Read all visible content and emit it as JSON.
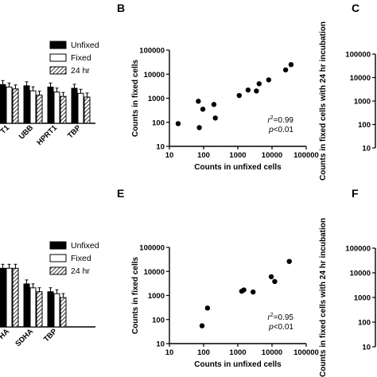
{
  "chart_data": [
    {
      "panel": "",
      "type": "bar",
      "categories": [
        "T1",
        "UBB",
        "HPRT1",
        "TBP"
      ],
      "series": [
        {
          "name": "Unfixed",
          "values": [
            62,
            60,
            58,
            56
          ]
        },
        {
          "name": "Fixed",
          "values": [
            58,
            52,
            50,
            48
          ]
        },
        {
          "name": "24 hr",
          "values": [
            55,
            45,
            43,
            42
          ]
        }
      ],
      "legend": "top-right",
      "colors": [
        "#000000",
        "#ffffff",
        "#ffffff"
      ]
    },
    {
      "panel": "B",
      "type": "scatter",
      "xlabel": "Counts in unfixed cells",
      "ylabel": "Counts in fixed cells",
      "xscale": "log",
      "yscale": "log",
      "xlim": [
        10,
        100000
      ],
      "ylim": [
        10,
        100000
      ],
      "xticks": [
        "10",
        "100",
        "1000",
        "10000",
        "100000"
      ],
      "yticks": [
        "10",
        "100",
        "1000",
        "10000",
        "100000"
      ],
      "x": [
        18,
        70,
        75,
        95,
        200,
        220,
        1100,
        2000,
        3500,
        4200,
        8000,
        25000,
        36000
      ],
      "y": [
        88,
        750,
        60,
        350,
        550,
        150,
        1300,
        2200,
        2000,
        4000,
        5800,
        15000,
        25000
      ],
      "r2": "=0.99",
      "p": "<0.01"
    },
    {
      "panel": "C",
      "type": "scatter",
      "ylabel": "Counts in fixed cells with 24 hr incubation",
      "yscale": "log",
      "ylim": [
        10,
        100000
      ],
      "yticks": [
        "10",
        "100",
        "1000",
        "10000",
        "100000"
      ]
    },
    {
      "panel": "",
      "type": "bar",
      "categories": [
        "HA",
        "SDHA",
        "TBP"
      ],
      "series": [
        {
          "name": "Unfixed",
          "values": [
            60,
            44,
            36
          ]
        },
        {
          "name": "Fixed",
          "values": [
            60,
            40,
            34
          ]
        },
        {
          "name": "24 hr",
          "values": [
            60,
            36,
            30
          ]
        }
      ],
      "legend": "top-right",
      "colors": [
        "#000000",
        "#ffffff",
        "#ffffff"
      ]
    },
    {
      "panel": "E",
      "type": "scatter",
      "xlabel": "Counts in unfixed cells",
      "ylabel": "Counts in fixed cells",
      "xscale": "log",
      "yscale": "log",
      "xlim": [
        10,
        100000
      ],
      "ylim": [
        10,
        100000
      ],
      "xticks": [
        "10",
        "100",
        "1000",
        "10000",
        "100000"
      ],
      "yticks": [
        "10",
        "100",
        "1000",
        "10000",
        "100000"
      ],
      "x": [
        90,
        130,
        1300,
        1500,
        2800,
        9500,
        12000,
        32000
      ],
      "y": [
        55,
        300,
        1500,
        1700,
        1400,
        6000,
        3800,
        26000
      ],
      "r2": "=0.95",
      "p": "<0.01"
    },
    {
      "panel": "F",
      "type": "scatter",
      "ylabel": "Counts in fixed cells with 24 hr incubation",
      "yscale": "log",
      "ylim": [
        10,
        100000
      ],
      "yticks": [
        "10",
        "100",
        "1000",
        "10000",
        "100000"
      ]
    }
  ]
}
